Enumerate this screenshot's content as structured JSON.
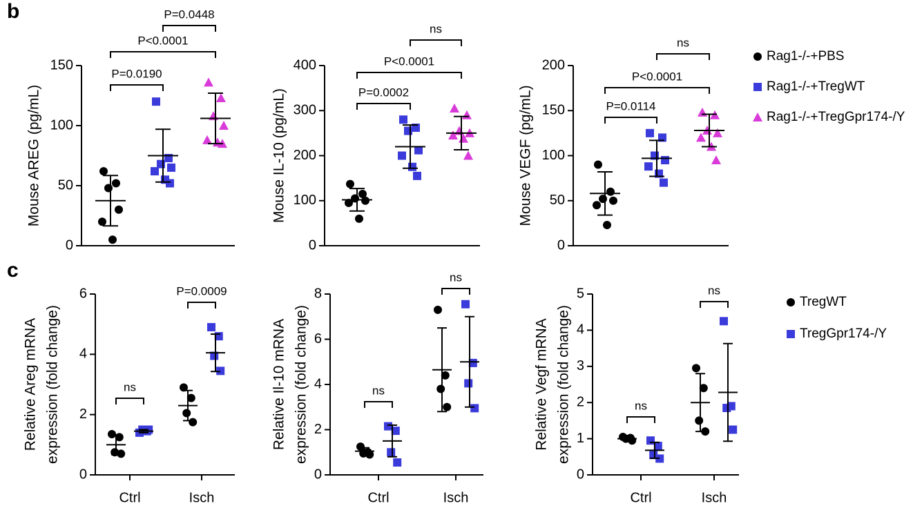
{
  "panels": [
    "b",
    "c"
  ],
  "chart_data": [
    {
      "type": "dot",
      "ylabel": [
        "Mouse AREG (pg/mL)"
      ],
      "ylim": [
        0,
        150
      ],
      "yticks": [
        0,
        50,
        100,
        150
      ],
      "series": [
        {
          "name": "Rag1-/-+PBS",
          "color": "#000000",
          "marker": "circle",
          "values": [
            62,
            52,
            48,
            30,
            20,
            5
          ],
          "mean": 37.5,
          "sd": 21
        },
        {
          "name": "Rag1-/-+TregWT",
          "color": "#3b3bdb",
          "marker": "square",
          "values": [
            120,
            73,
            68,
            65,
            62,
            55,
            52
          ],
          "mean": 75,
          "sd": 22
        },
        {
          "name": "Rag1-/-+TregGpr174-/Y",
          "color": "#d93bd9",
          "marker": "triangle",
          "values": [
            136,
            123,
            108,
            100,
            88,
            86,
            85
          ],
          "mean": 106,
          "sd": 21
        }
      ],
      "comparisons": [
        {
          "groups": [
            0,
            1
          ],
          "label": "P=0.0190"
        },
        {
          "groups": [
            0,
            2
          ],
          "label": "P<0.0001"
        },
        {
          "groups": [
            1,
            2
          ],
          "label": "P=0.0448"
        }
      ]
    },
    {
      "type": "dot",
      "ylabel": [
        "Mouse IL-10 (pg/mL)"
      ],
      "ylim": [
        0,
        400
      ],
      "yticks": [
        0,
        100,
        200,
        300,
        400
      ],
      "series": [
        {
          "name": "Rag1-/-+PBS",
          "color": "#000000",
          "marker": "circle",
          "values": [
            137,
            115,
            105,
            100,
            95,
            60
          ],
          "mean": 102,
          "sd": 25
        },
        {
          "name": "Rag1-/-+TregWT",
          "color": "#3b3bdb",
          "marker": "square",
          "values": [
            280,
            262,
            255,
            212,
            200,
            175,
            155
          ],
          "mean": 220,
          "sd": 48
        },
        {
          "name": "Rag1-/-+TregGpr174-/Y",
          "color": "#d93bd9",
          "marker": "triangle",
          "values": [
            305,
            290,
            255,
            250,
            245,
            238,
            200
          ],
          "mean": 250,
          "sd": 37
        }
      ],
      "comparisons": [
        {
          "groups": [
            0,
            1
          ],
          "label": "P=0.0002"
        },
        {
          "groups": [
            0,
            2
          ],
          "label": "P<0.0001"
        },
        {
          "groups": [
            1,
            2
          ],
          "label": "ns"
        }
      ]
    },
    {
      "type": "dot",
      "ylabel": [
        "Mouse VEGF (pg/mL)"
      ],
      "ylim": [
        0,
        200
      ],
      "yticks": [
        0,
        50,
        100,
        150,
        200
      ],
      "series": [
        {
          "name": "Rag1-/-+PBS",
          "color": "#000000",
          "marker": "circle",
          "values": [
            90,
            60,
            52,
            50,
            45,
            23
          ],
          "mean": 58,
          "sd": 24
        },
        {
          "name": "Rag1-/-+TregWT",
          "color": "#3b3bdb",
          "marker": "square",
          "values": [
            125,
            120,
            100,
            95,
            88,
            80,
            70
          ],
          "mean": 97,
          "sd": 20
        },
        {
          "name": "Rag1-/-+TregGpr174-/Y",
          "color": "#d93bd9",
          "marker": "triangle",
          "values": [
            148,
            145,
            128,
            125,
            120,
            110,
            95
          ],
          "mean": 128,
          "sd": 18
        }
      ],
      "comparisons": [
        {
          "groups": [
            0,
            1
          ],
          "label": "P=0.0114"
        },
        {
          "groups": [
            0,
            2
          ],
          "label": "P<0.0001"
        },
        {
          "groups": [
            1,
            2
          ],
          "label": "ns"
        }
      ]
    },
    {
      "type": "grouped-dot",
      "ylabel": [
        "Relative Areg mRNA",
        "expression (fold change)"
      ],
      "ylim": [
        0,
        6
      ],
      "yticks": [
        0,
        2,
        4,
        6
      ],
      "categories": [
        "Ctrl",
        "Isch"
      ],
      "series": [
        {
          "name": "TregWT",
          "color": "#000000",
          "marker": "circle",
          "values": [
            [
              1.35,
              1.25,
              0.75,
              0.7
            ],
            [
              2.9,
              2.55,
              2.05,
              1.75
            ]
          ],
          "mean": [
            1.0,
            2.3
          ],
          "sd": [
            0.33,
            0.5
          ]
        },
        {
          "name": "TregGpr174-/Y",
          "color": "#3b3bdb",
          "marker": "square",
          "values": [
            [
              1.4,
              1.45,
              1.5,
              1.5
            ],
            [
              4.9,
              4.6,
              3.95,
              3.45
            ]
          ],
          "mean": [
            1.45,
            4.05
          ],
          "sd": [
            0.05,
            0.62
          ]
        }
      ],
      "comparisons": [
        {
          "category": 0,
          "label": "ns"
        },
        {
          "category": 1,
          "label": "P=0.0009"
        }
      ]
    },
    {
      "type": "grouped-dot",
      "ylabel": [
        "Relative Il-10 mRNA",
        "expression (fold change)"
      ],
      "ylim": [
        0,
        8
      ],
      "yticks": [
        0,
        2,
        4,
        6,
        8
      ],
      "categories": [
        "Ctrl",
        "Isch"
      ],
      "series": [
        {
          "name": "TregWT",
          "color": "#000000",
          "marker": "circle",
          "values": [
            [
              1.25,
              1.0,
              0.95,
              0.9
            ],
            [
              7.3,
              4.4,
              3.8,
              3.0
            ]
          ],
          "mean": [
            1.05,
            4.65
          ],
          "sd": [
            0.15,
            1.85
          ]
        },
        {
          "name": "TregGpr174-/Y",
          "color": "#3b3bdb",
          "marker": "square",
          "values": [
            [
              2.15,
              1.95,
              1.0,
              0.55
            ],
            [
              7.55,
              4.95,
              4.05,
              2.95
            ]
          ],
          "mean": [
            1.5,
            5.0
          ],
          "sd": [
            0.7,
            2.0
          ]
        }
      ],
      "comparisons": [
        {
          "category": 0,
          "label": "ns"
        },
        {
          "category": 1,
          "label": "ns"
        }
      ]
    },
    {
      "type": "grouped-dot",
      "ylabel": [
        "Relative Vegf mRNA",
        "expression (fold change)"
      ],
      "ylim": [
        0,
        5
      ],
      "yticks": [
        0,
        1,
        2,
        3,
        4,
        5
      ],
      "categories": [
        "Ctrl",
        "Isch"
      ],
      "series": [
        {
          "name": "TregWT",
          "color": "#000000",
          "marker": "circle",
          "values": [
            [
              1.05,
              1.02,
              1.0,
              0.95
            ],
            [
              2.95,
              2.4,
              1.5,
              1.2
            ]
          ],
          "mean": [
            1.0,
            2.0
          ],
          "sd": [
            0.04,
            0.8
          ]
        },
        {
          "name": "TregGpr174-/Y",
          "color": "#3b3bdb",
          "marker": "square",
          "values": [
            [
              0.95,
              0.8,
              0.55,
              0.45
            ],
            [
              4.25,
              1.9,
              1.85,
              1.25
            ]
          ],
          "mean": [
            0.68,
            2.28
          ],
          "sd": [
            0.22,
            1.35
          ]
        }
      ],
      "comparisons": [
        {
          "category": 0,
          "label": "ns"
        },
        {
          "category": 1,
          "label": "ns"
        }
      ]
    }
  ]
}
